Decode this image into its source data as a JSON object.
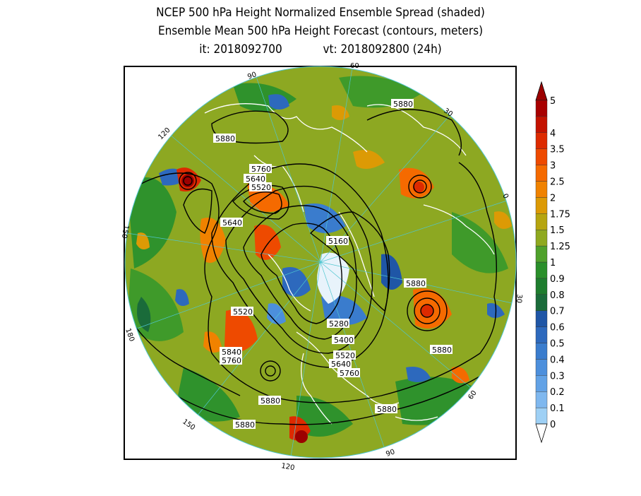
{
  "title": {
    "line1": "NCEP 500 hPa Height Normalized Ensemble Spread (shaded)",
    "line2": "Ensemble Mean 500 hPa Height Forecast (contours, meters)",
    "line3_it": "it: 2018092700",
    "line3_vt": "vt: 2018092800 (24h)"
  },
  "colorbar": {
    "levels": [
      "0",
      "0.1",
      "0.2",
      "0.3",
      "0.4",
      "0.5",
      "0.6",
      "0.7",
      "0.8",
      "0.9",
      "1",
      "1.25",
      "1.5",
      "1.75",
      "2",
      "2.5",
      "3",
      "3.5",
      "4",
      "5"
    ],
    "colors": [
      "#9ed0f5",
      "#7fb8ef",
      "#62a2e6",
      "#4c8fdc",
      "#3a7ccd",
      "#2d69bd",
      "#1f56a6",
      "#1a6b3a",
      "#1e7d2e",
      "#2a8f2a",
      "#4fa12b",
      "#8fa91f",
      "#b6a50f",
      "#dc9a05",
      "#f08200",
      "#f56a00",
      "#ee4a00",
      "#dd2a00",
      "#c41200",
      "#a80000"
    ],
    "under_color": "#ffffff",
    "over_color": "#9c0000"
  },
  "contour_labels": [
    "5880",
    "5880",
    "5760",
    "5640",
    "5520",
    "5640",
    "5160",
    "5880",
    "5520",
    "5280",
    "5400",
    "5840",
    "5760",
    "5520",
    "5640",
    "5760",
    "5880",
    "5880",
    "5880",
    "5880"
  ],
  "longitude_labels": [
    "90",
    "60",
    "30",
    "0",
    "30",
    "60",
    "90",
    "120",
    "150",
    "180",
    "150",
    "120"
  ]
}
